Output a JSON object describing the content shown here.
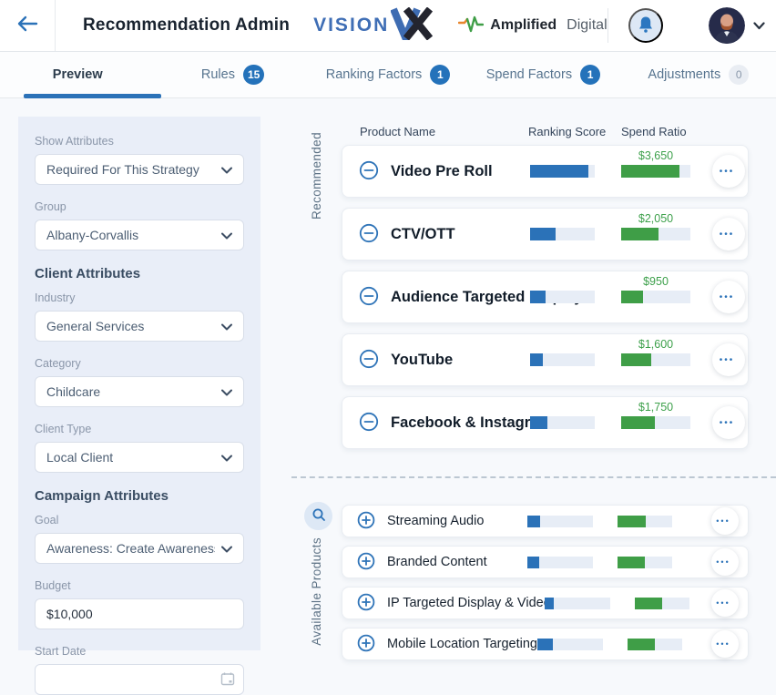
{
  "header": {
    "title": "Recommendation Admin",
    "vision_logo_text": "VISION",
    "amplified_bold": "Amplified",
    "amplified_light": "Digital"
  },
  "tabs": {
    "preview": {
      "label": "Preview"
    },
    "rules": {
      "label": "Rules",
      "badge": "15"
    },
    "ranking_factors": {
      "label": "Ranking Factors",
      "badge": "1"
    },
    "spend_factors": {
      "label": "Spend Factors",
      "badge": "1"
    },
    "adjustments": {
      "label": "Adjustments",
      "badge": "0"
    }
  },
  "sidebar": {
    "show_attributes": {
      "label": "Show Attributes",
      "value": "Required For This Strategy"
    },
    "group": {
      "label": "Group",
      "value": "Albany-Corvallis"
    },
    "client_attributes_heading": "Client Attributes",
    "industry": {
      "label": "Industry",
      "value": "General Services"
    },
    "category": {
      "label": "Category",
      "value": "Childcare"
    },
    "client_type": {
      "label": "Client Type",
      "value": "Local Client"
    },
    "campaign_attributes_heading": "Campaign Attributes",
    "goal": {
      "label": "Goal",
      "value": "Awareness: Create Awareness ("
    },
    "budget": {
      "label": "Budget",
      "value": "$10,000"
    },
    "start_date": {
      "label": "Start Date",
      "value": ""
    }
  },
  "main": {
    "columns": {
      "product": "Product Name",
      "ranking": "Ranking Score",
      "spend": "Spend Ratio"
    },
    "recommended_label": "Recommended",
    "available_label": "Available Products",
    "recommended": [
      {
        "name": "Video Pre Roll",
        "spend_amount": "$3,650",
        "ranking_pct": 90,
        "spend_pct": 84
      },
      {
        "name": "CTV/OTT",
        "spend_amount": "$2,050",
        "ranking_pct": 39,
        "spend_pct": 54
      },
      {
        "name": "Audience Targeted Display",
        "spend_amount": "$950",
        "ranking_pct": 24,
        "spend_pct": 31
      },
      {
        "name": "YouTube",
        "spend_amount": "$1,600",
        "ranking_pct": 20,
        "spend_pct": 43
      },
      {
        "name": "Facebook & Instagram Ads",
        "spend_amount": "$1,750",
        "ranking_pct": 27,
        "spend_pct": 49
      }
    ],
    "available": [
      {
        "name": "Streaming Audio",
        "ranking_pct": 19,
        "spend_pct": 52
      },
      {
        "name": "Branded Content",
        "ranking_pct": 18,
        "spend_pct": 50
      },
      {
        "name": "IP Targeted Display & Video",
        "ranking_pct": 14,
        "spend_pct": 50
      },
      {
        "name": "Mobile Location Targeting",
        "ranking_pct": 24,
        "spend_pct": 50
      }
    ]
  },
  "icons": {
    "ellipsis": "•••"
  },
  "colors": {
    "primary_blue": "#2b72b8",
    "bar_green": "#3f9e47",
    "badge_blue": "#2472ba",
    "sidebar_bg": "#e9eef8",
    "page_bg": "#f7f9fc"
  }
}
